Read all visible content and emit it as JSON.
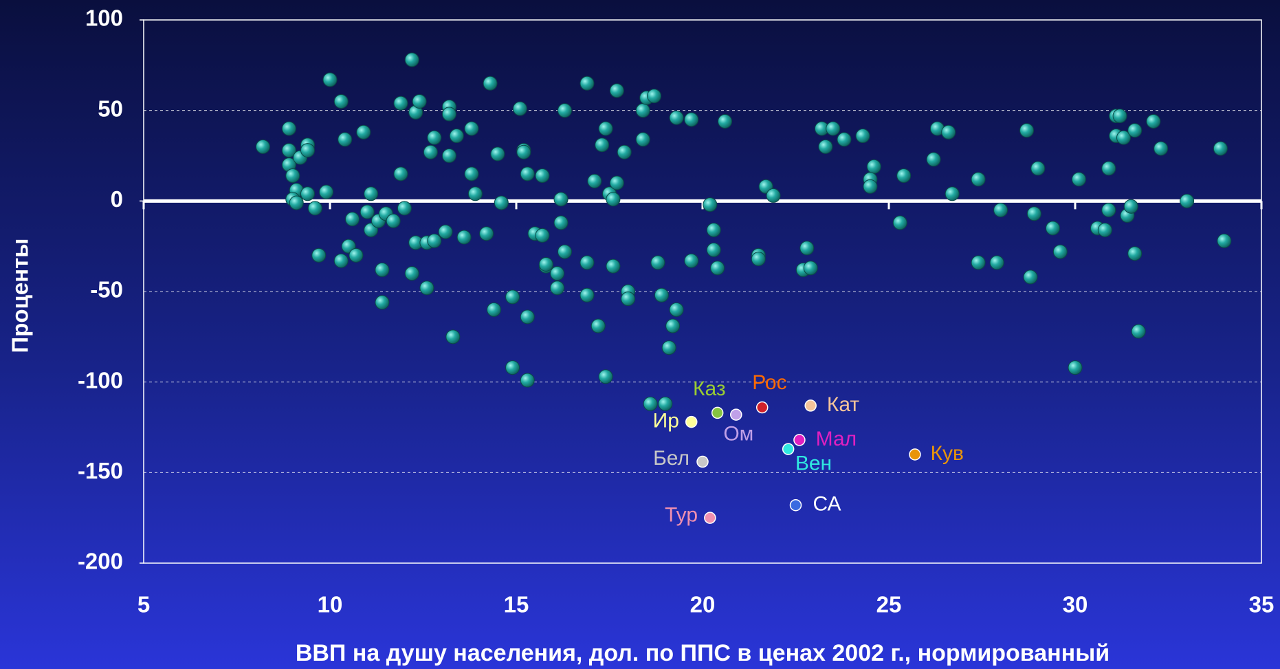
{
  "chart_data": {
    "type": "scatter",
    "y_label": "Проценты",
    "x_label": "ВВП на душу населения, дол. по ППС в ценах 2002 г., нормированный",
    "xlim": [
      5,
      35
    ],
    "xticks": [
      5,
      10,
      15,
      20,
      25,
      30,
      35
    ],
    "ylim": [
      -200,
      100
    ],
    "yticks": [
      -200,
      -150,
      -100,
      -50,
      0,
      50,
      100
    ],
    "grid": true,
    "series": [
      {
        "color": "#22aaa2",
        "x": [
          8.2,
          8.9,
          8.9,
          8.9,
          9.0,
          9.2,
          9.4,
          9.4,
          9.1,
          9.0,
          9.1,
          9.4,
          9.6,
          9.7,
          9.9,
          10.0,
          10.3,
          10.4,
          10.3,
          10.5,
          10.7,
          10.6,
          10.9,
          11.0,
          11.1,
          11.1,
          11.3,
          11.4,
          11.4,
          11.5,
          11.7,
          11.9,
          11.9,
          12.0,
          12.2,
          12.3,
          12.4,
          12.2,
          12.3,
          12.6,
          12.6,
          12.7,
          12.8,
          12.8,
          13.1,
          13.2,
          13.2,
          13.2,
          13.4,
          13.3,
          13.6,
          13.8,
          13.8,
          13.9,
          14.2,
          14.3,
          14.4,
          14.5,
          14.6,
          14.9,
          14.9,
          15.1,
          15.2,
          15.2,
          15.3,
          15.3,
          15.3,
          15.5,
          15.7,
          15.7,
          15.8,
          15.8,
          16.1,
          16.1,
          16.2,
          16.2,
          16.3,
          16.3,
          16.9,
          16.9,
          16.9,
          17.1,
          17.2,
          17.3,
          17.4,
          17.4,
          17.5,
          17.6,
          17.6,
          17.7,
          17.7,
          17.9,
          18.0,
          18.0,
          18.4,
          18.4,
          18.5,
          18.7,
          18.6,
          18.8,
          18.9,
          19.0,
          19.1,
          19.2,
          19.3,
          19.3,
          19.7,
          19.7,
          20.2,
          20.3,
          20.3,
          20.4,
          20.6,
          21.5,
          21.5,
          21.7,
          21.9,
          22.7,
          22.8,
          22.9,
          23.2,
          23.3,
          23.5,
          23.8,
          24.3,
          24.6,
          24.5,
          24.5,
          25.3,
          25.4,
          26.2,
          26.3,
          26.6,
          26.7,
          27.4,
          27.4,
          28.0,
          27.9,
          28.7,
          28.8,
          28.9,
          29.0,
          29.4,
          29.6,
          30.0,
          30.1,
          30.6,
          30.8,
          30.9,
          30.9,
          31.1,
          31.2,
          31.1,
          31.3,
          31.4,
          31.5,
          31.6,
          31.6,
          31.7,
          32.1,
          32.3,
          33.0,
          33.9,
          34.0
        ],
        "values": [
          30,
          40,
          28,
          20,
          14,
          24,
          31,
          28,
          6,
          1,
          -1,
          4,
          -4,
          -30,
          5,
          67,
          55,
          34,
          -33,
          -25,
          -30,
          -10,
          38,
          -6,
          4,
          -16,
          -11,
          -38,
          -56,
          -7,
          -11,
          15,
          54,
          -4,
          78,
          49,
          55,
          -40,
          -23,
          -23,
          -48,
          27,
          35,
          -22,
          -17,
          25,
          52,
          48,
          36,
          -75,
          -20,
          40,
          15,
          4,
          -18,
          65,
          -60,
          26,
          -1,
          -92,
          -53,
          51,
          28,
          27,
          15,
          -99,
          -64,
          -18,
          -19,
          14,
          -36,
          -35,
          -40,
          -48,
          1,
          -12,
          50,
          -28,
          -34,
          -52,
          65,
          11,
          -69,
          31,
          40,
          -97,
          4,
          1,
          -36,
          61,
          10,
          27,
          -50,
          -54,
          50,
          34,
          57,
          58,
          -112,
          -34,
          -52,
          -112,
          -81,
          -69,
          -60,
          46,
          45,
          -33,
          -2,
          -16,
          -27,
          -37,
          44,
          -30,
          -32,
          8,
          3,
          -38,
          -26,
          -37,
          40,
          30,
          40,
          34,
          36,
          19,
          12,
          8,
          -12,
          14,
          23,
          40,
          38,
          4,
          12,
          -34,
          -5,
          -34,
          39,
          -42,
          -7,
          18,
          -15,
          -28,
          -92,
          12,
          -15,
          -16,
          -5,
          18,
          47,
          47,
          36,
          35,
          -8,
          -3,
          39,
          -29,
          -72,
          44,
          29,
          0,
          29,
          -22
        ]
      },
      {
        "name": "Каз",
        "color": "#86c440",
        "label_color": "#9acd32",
        "x": [
          20.4
        ],
        "values": [
          -117
        ]
      },
      {
        "name": "Рос",
        "color": "#d0202a",
        "label_color": "#ff6a00",
        "x": [
          21.6
        ],
        "values": [
          -114
        ]
      },
      {
        "name": "Ир",
        "color": "#ffff99",
        "label_color": "#ffff99",
        "x": [
          19.7
        ],
        "values": [
          -122
        ]
      },
      {
        "name": "Ом",
        "color": "#c0a0e8",
        "label_color": "#c0a0e8",
        "x": [
          20.9
        ],
        "values": [
          -118
        ]
      },
      {
        "name": "Кат",
        "color": "#f5c49a",
        "label_color": "#f5c49a",
        "x": [
          22.9
        ],
        "values": [
          -113
        ]
      },
      {
        "name": "Мал",
        "color": "#e020c0",
        "label_color": "#e020c0",
        "x": [
          22.6
        ],
        "values": [
          -132
        ]
      },
      {
        "name": "Вен",
        "color": "#30e8e0",
        "label_color": "#30e8e0",
        "x": [
          22.3
        ],
        "values": [
          -137
        ]
      },
      {
        "name": "Кув",
        "color": "#e8940a",
        "label_color": "#e8940a",
        "x": [
          25.7
        ],
        "values": [
          -140
        ]
      },
      {
        "name": "Бел",
        "color": "#c8c8c8",
        "label_color": "#c8c8c8",
        "x": [
          20.0
        ],
        "values": [
          -144
        ]
      },
      {
        "name": "СА",
        "color": "#3a6ae0",
        "label_color": "#ffffff",
        "x": [
          22.5
        ],
        "values": [
          -168
        ]
      },
      {
        "name": "Тур",
        "color": "#f090b0",
        "label_color": "#f090b0",
        "x": [
          20.2
        ],
        "values": [
          -175
        ]
      }
    ]
  }
}
